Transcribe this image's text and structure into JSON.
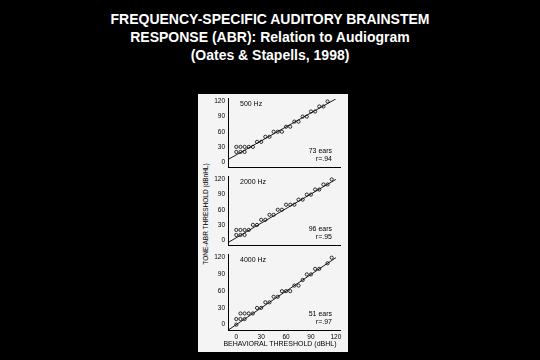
{
  "slide_title": [
    "FREQUENCY-SPECIFIC AUDITORY BRAINSTEM",
    "RESPONSE (ABR): Relation to Audiogram",
    "(Oates & Stapells, 1998)"
  ],
  "y_axis_label": "TONE-ABR THRESHOLD (dBnHL)",
  "x_axis_label": "BEHAVIORAL THRESHOLD (dBHL)",
  "chart_data": [
    {
      "type": "scatter",
      "title": "500 Hz",
      "annotations": [
        "73 ears",
        "r=.94"
      ],
      "xlim": [
        -10,
        125
      ],
      "ylim": [
        -10,
        125
      ],
      "xticks": [
        0,
        30,
        60,
        90,
        120
      ],
      "yticks": [
        0,
        30,
        60,
        90,
        120
      ],
      "grid": false,
      "tick_labels": "y",
      "series": [
        {
          "type": "scatter",
          "color": "#000000",
          "marker": "open_circle",
          "x": [
            0,
            5,
            10,
            0,
            5,
            10,
            15,
            20,
            25,
            30,
            35,
            40,
            45,
            50,
            55,
            60,
            65,
            70,
            75,
            80,
            85,
            90,
            95,
            100,
            105,
            110
          ],
          "values": [
            20,
            20,
            20,
            30,
            30,
            30,
            30,
            30,
            40,
            40,
            50,
            50,
            60,
            60,
            60,
            70,
            70,
            80,
            80,
            90,
            90,
            100,
            100,
            110,
            110,
            120
          ]
        },
        {
          "type": "line",
          "color": "#000000",
          "line_style": "solid",
          "x": [
            -10,
            120
          ],
          "values": [
            5,
            125
          ]
        }
      ]
    },
    {
      "type": "scatter",
      "title": "2000 Hz",
      "annotations": [
        "96 ears",
        "r=.95"
      ],
      "xlim": [
        -10,
        125
      ],
      "ylim": [
        -10,
        125
      ],
      "xticks": [
        0,
        30,
        60,
        90,
        120
      ],
      "yticks": [
        0,
        30,
        60,
        90,
        120
      ],
      "grid": false,
      "tick_labels": "y",
      "series": [
        {
          "type": "scatter",
          "color": "#000000",
          "marker": "open_circle",
          "x": [
            0,
            0,
            5,
            5,
            10,
            10,
            15,
            20,
            25,
            30,
            35,
            40,
            45,
            50,
            55,
            60,
            65,
            70,
            75,
            80,
            85,
            90,
            95,
            100,
            105,
            110,
            115
          ],
          "values": [
            10,
            20,
            10,
            20,
            10,
            20,
            20,
            30,
            30,
            40,
            40,
            50,
            50,
            60,
            60,
            70,
            70,
            70,
            80,
            80,
            90,
            90,
            100,
            100,
            110,
            110,
            120
          ]
        },
        {
          "type": "line",
          "color": "#000000",
          "line_style": "solid",
          "x": [
            -10,
            120
          ],
          "values": [
            -5,
            120
          ]
        }
      ]
    },
    {
      "type": "scatter",
      "title": "4000 Hz",
      "annotations": [
        "51 ears",
        "r=.97"
      ],
      "xlim": [
        -10,
        125
      ],
      "ylim": [
        -10,
        125
      ],
      "xticks": [
        0,
        30,
        60,
        90,
        120
      ],
      "yticks": [
        0,
        30,
        60,
        90,
        120
      ],
      "grid": false,
      "series": [
        {
          "type": "scatter",
          "color": "#000000",
          "marker": "open_circle",
          "x": [
            0,
            0,
            5,
            5,
            10,
            10,
            15,
            20,
            25,
            30,
            35,
            40,
            45,
            50,
            55,
            60,
            65,
            70,
            75,
            80,
            85,
            90,
            95,
            100,
            110,
            115
          ],
          "values": [
            0,
            10,
            10,
            20,
            10,
            20,
            20,
            20,
            30,
            30,
            40,
            40,
            50,
            50,
            60,
            60,
            60,
            70,
            70,
            80,
            90,
            90,
            100,
            100,
            110,
            120
          ]
        },
        {
          "type": "line",
          "color": "#000000",
          "line_style": "solid",
          "x": [
            -10,
            120
          ],
          "values": [
            -10,
            120
          ]
        }
      ]
    }
  ]
}
